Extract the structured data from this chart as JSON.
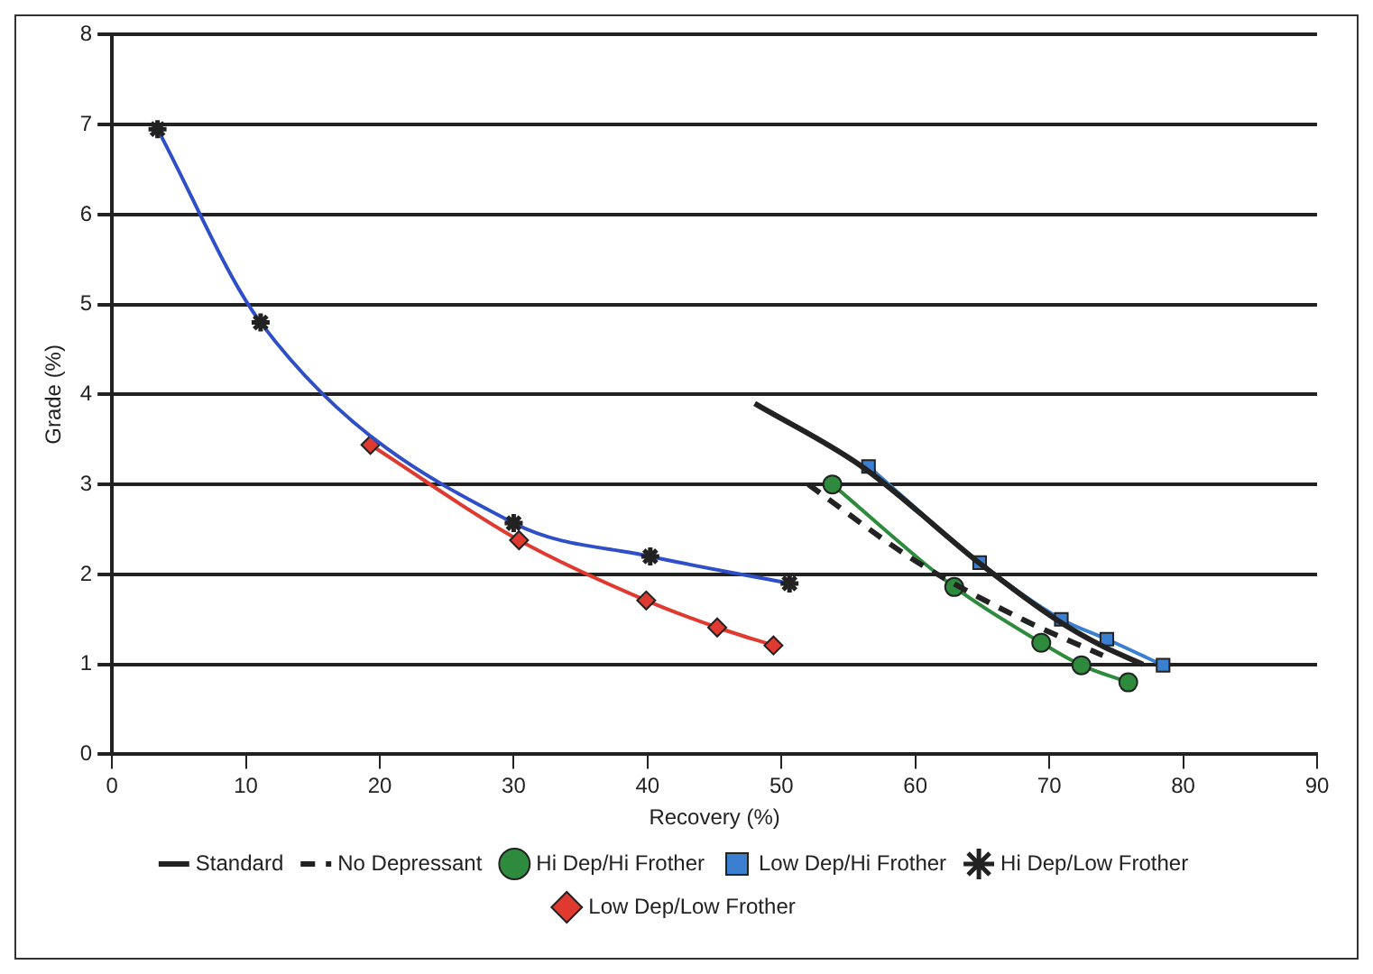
{
  "chart_data": {
    "type": "line",
    "xlabel": "Recovery (%)",
    "ylabel": "Grade (%)",
    "xlim": [
      0,
      90
    ],
    "xticks": [
      0,
      10,
      20,
      30,
      40,
      50,
      60,
      70,
      80,
      90
    ],
    "ylim": [
      0,
      8
    ],
    "yticks": [
      0,
      1,
      2,
      3,
      4,
      5,
      6,
      7,
      8
    ],
    "grid": "y",
    "legend": "bottom",
    "series": [
      {
        "name": "Standard",
        "color": "#222222",
        "marker": "none",
        "line_style": "solid",
        "x": [
          48,
          56,
          65,
          70.5,
          74,
          77
        ],
        "values": [
          3.9,
          3.2,
          2.1,
          1.5,
          1.2,
          1.0
        ]
      },
      {
        "name": "No Depressant",
        "color": "#222222",
        "marker": "none",
        "line_style": "dashed",
        "x": [
          52,
          60,
          68,
          74
        ],
        "values": [
          3.0,
          2.15,
          1.5,
          1.1
        ]
      },
      {
        "name": "Hi Dep/Hi Frother",
        "color": "#2e8b3e",
        "marker": "circle",
        "line_style": "solid",
        "x": [
          53.8,
          62.9,
          69.4,
          72.4,
          75.9
        ],
        "values": [
          3.0,
          1.86,
          1.24,
          0.99,
          0.8
        ]
      },
      {
        "name": "Low Dep/Hi Frother",
        "color": "#3a7fd0",
        "marker": "square",
        "line_style": "solid",
        "x": [
          56.5,
          64.8,
          70.9,
          74.3,
          78.5
        ],
        "values": [
          3.2,
          2.13,
          1.5,
          1.28,
          0.99
        ]
      },
      {
        "name": "Hi Dep/Low Frother",
        "color": "#2f4fc8",
        "marker": "cross",
        "line_style": "solid",
        "x": [
          3.4,
          11.1,
          30,
          40.2,
          50.6
        ],
        "values": [
          6.95,
          4.8,
          2.57,
          2.2,
          1.9
        ]
      },
      {
        "name": "Low Dep/Low Frother",
        "color": "#e03a30",
        "marker": "diamond",
        "line_style": "solid",
        "x": [
          19.3,
          30.4,
          39.9,
          45.2,
          49.4
        ],
        "values": [
          3.44,
          2.38,
          1.71,
          1.41,
          1.21
        ]
      }
    ]
  }
}
